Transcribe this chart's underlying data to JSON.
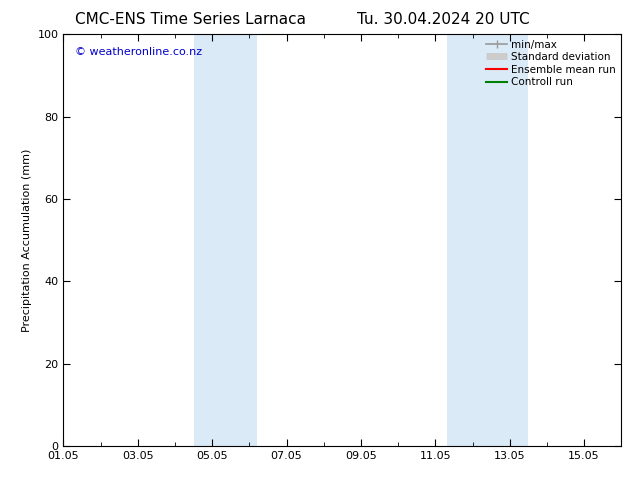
{
  "title_left": "CMC-ENS Time Series Larnaca",
  "title_right": "Tu. 30.04.2024 20 UTC",
  "ylabel": "Precipitation Accumulation (mm)",
  "ylim": [
    0,
    100
  ],
  "yticks": [
    0,
    20,
    40,
    60,
    80,
    100
  ],
  "xlim": [
    0,
    15
  ],
  "xtick_labels": [
    "01.05",
    "03.05",
    "05.05",
    "07.05",
    "09.05",
    "11.05",
    "13.05",
    "15.05"
  ],
  "xtick_positions_days": [
    0,
    2,
    4,
    6,
    8,
    10,
    12,
    14
  ],
  "shaded_regions": [
    {
      "start_day": 3.5,
      "end_day": 5.2,
      "color": "#daeaf7"
    },
    {
      "start_day": 10.3,
      "end_day": 12.5,
      "color": "#daeaf7"
    }
  ],
  "legend_entries": [
    {
      "label": "min/max",
      "color": "#999999",
      "lw": 1.2
    },
    {
      "label": "Standard deviation",
      "color": "#cccccc",
      "lw": 5
    },
    {
      "label": "Ensemble mean run",
      "color": "#ff0000",
      "lw": 1.5
    },
    {
      "label": "Controll run",
      "color": "#008000",
      "lw": 1.5
    }
  ],
  "watermark_text": "© weatheronline.co.nz",
  "watermark_color": "#0000cc",
  "background_color": "#ffffff",
  "plot_bg_color": "#ffffff",
  "title_fontsize": 11,
  "axis_fontsize": 8,
  "tick_fontsize": 8,
  "legend_fontsize": 7.5
}
